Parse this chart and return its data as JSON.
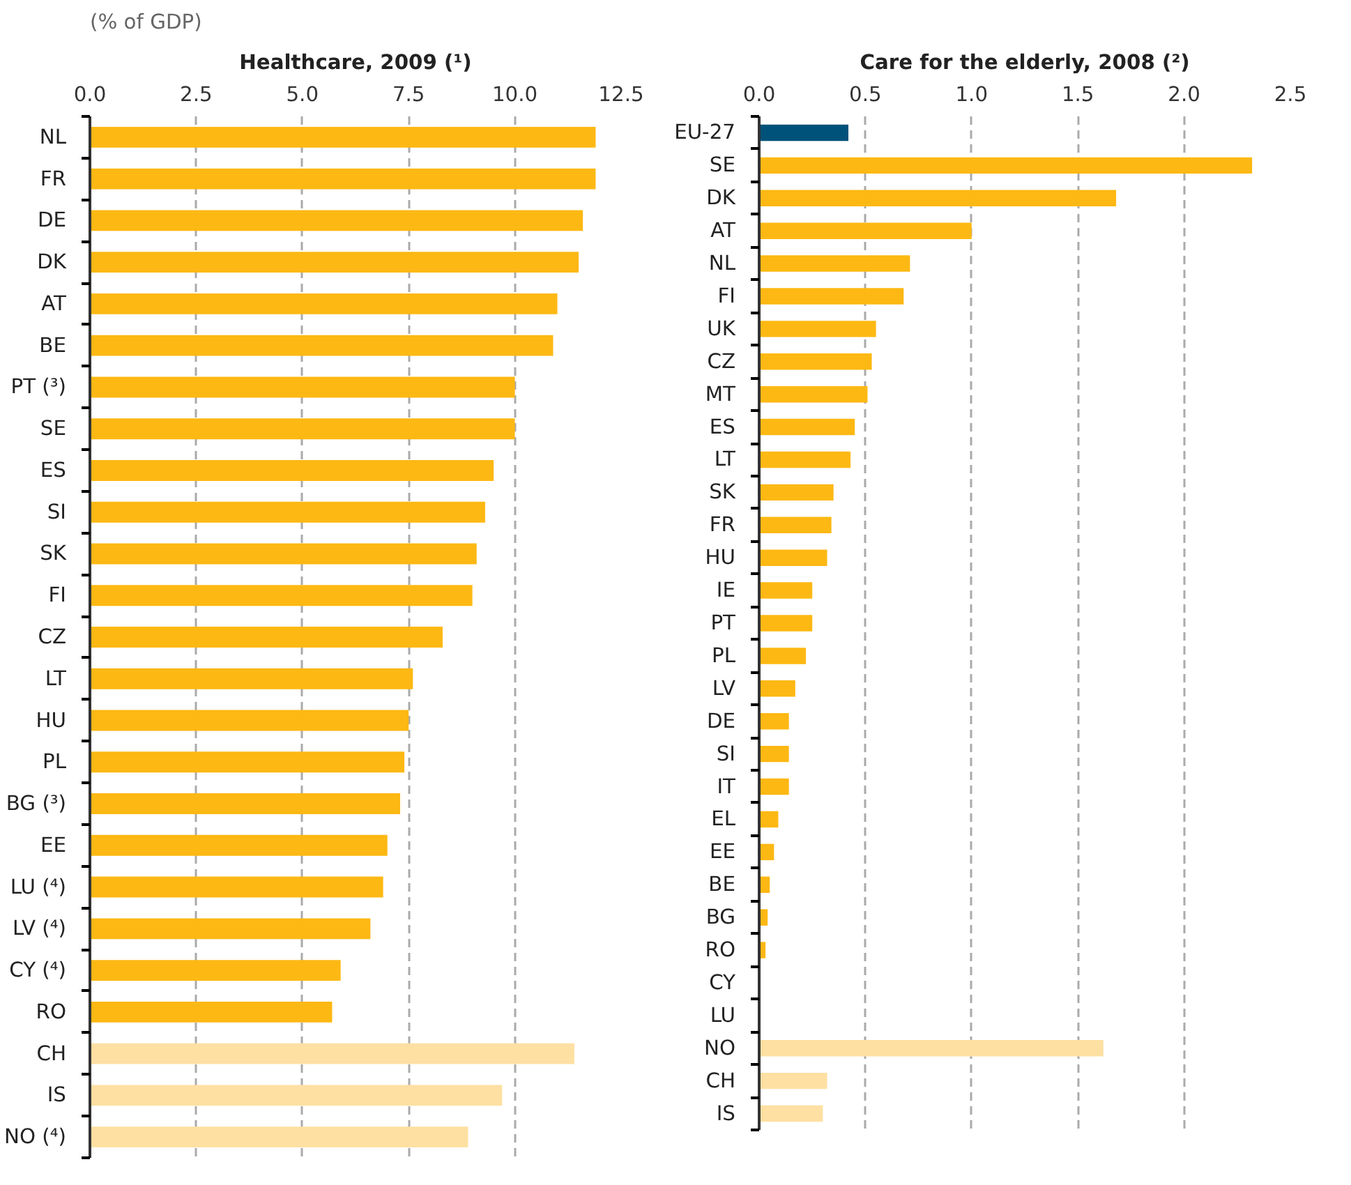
{
  "chart_data": [
    {
      "type": "bar",
      "orientation": "horizontal",
      "title": "Healthcare, 2009 (¹)",
      "subtitle": "(% of GDP)",
      "grid": "x",
      "categories": [
        "NL",
        "FR",
        "DE",
        "DK",
        "AT",
        "BE",
        "PT (³)",
        "SE",
        "ES",
        "SI",
        "SK",
        "FI",
        "CZ",
        "LT",
        "HU",
        "PL",
        "BG (³)",
        "EE",
        "LU (⁴)",
        "LV (⁴)",
        "CY (⁴)",
        "RO",
        "CH",
        "IS",
        "NO (⁴)"
      ],
      "values": [
        11.9,
        11.9,
        11.6,
        11.5,
        11.0,
        10.9,
        10.0,
        10.0,
        9.5,
        9.3,
        9.1,
        9.0,
        8.3,
        7.6,
        7.5,
        7.4,
        7.3,
        7.0,
        6.9,
        6.6,
        5.9,
        5.7,
        11.4,
        9.7,
        8.9
      ],
      "colors": [
        "#fdb813",
        "#fdb813",
        "#fdb813",
        "#fdb813",
        "#fdb813",
        "#fdb813",
        "#fdb813",
        "#fdb813",
        "#fdb813",
        "#fdb813",
        "#fdb813",
        "#fdb813",
        "#fdb813",
        "#fdb813",
        "#fdb813",
        "#fdb813",
        "#fdb813",
        "#fdb813",
        "#fdb813",
        "#fdb813",
        "#fdb813",
        "#fdb813",
        "#fee0a3",
        "#fee0a3",
        "#fee0a3"
      ],
      "xlim": [
        0,
        12.5
      ],
      "xticks": [
        {
          "value": 0,
          "label": "0.0"
        },
        {
          "value": 2.5,
          "label": "2.5"
        },
        {
          "value": 5,
          "label": "5.0"
        },
        {
          "value": 7.5,
          "label": "7.5"
        },
        {
          "value": 10,
          "label": "10.0"
        },
        {
          "value": 12.5,
          "label": "12.5"
        }
      ]
    },
    {
      "type": "bar",
      "orientation": "horizontal",
      "title": "Care for the elderly, 2008 (²)",
      "grid": "x",
      "categories": [
        "EU-27",
        "SE",
        "DK",
        "AT",
        "NL",
        "FI",
        "UK",
        "CZ",
        "MT",
        "ES",
        "LT",
        "SK",
        "FR",
        "HU",
        "IE",
        "PT",
        "PL",
        "LV",
        "DE",
        "SI",
        "IT",
        "EL",
        "EE",
        "BE",
        "BG",
        "RO",
        "CY",
        "LU",
        "NO",
        "CH",
        "IS"
      ],
      "values": [
        0.42,
        2.32,
        1.68,
        1.0,
        0.71,
        0.68,
        0.55,
        0.53,
        0.51,
        0.45,
        0.43,
        0.35,
        0.34,
        0.32,
        0.25,
        0.25,
        0.22,
        0.17,
        0.14,
        0.14,
        0.14,
        0.09,
        0.07,
        0.05,
        0.04,
        0.03,
        null,
        null,
        1.62,
        0.32,
        0.3
      ],
      "colors": [
        "#00527a",
        "#fdb813",
        "#fdb813",
        "#fdb813",
        "#fdb813",
        "#fdb813",
        "#fdb813",
        "#fdb813",
        "#fdb813",
        "#fdb813",
        "#fdb813",
        "#fdb813",
        "#fdb813",
        "#fdb813",
        "#fdb813",
        "#fdb813",
        "#fdb813",
        "#fdb813",
        "#fdb813",
        "#fdb813",
        "#fdb813",
        "#fdb813",
        "#fdb813",
        "#fdb813",
        "#fdb813",
        "#fdb813",
        "#fdb813",
        "#fdb813",
        "#fee0a3",
        "#fee0a3",
        "#fee0a3"
      ],
      "xlim": [
        0,
        2.5
      ],
      "xticks": [
        {
          "value": 0,
          "label": "0.0"
        },
        {
          "value": 0.5,
          "label": "0.5"
        },
        {
          "value": 1,
          "label": "1.0"
        },
        {
          "value": 1.5,
          "label": "1.5"
        },
        {
          "value": 2,
          "label": "2.0"
        },
        {
          "value": 2.5,
          "label": "2.5"
        }
      ]
    }
  ]
}
